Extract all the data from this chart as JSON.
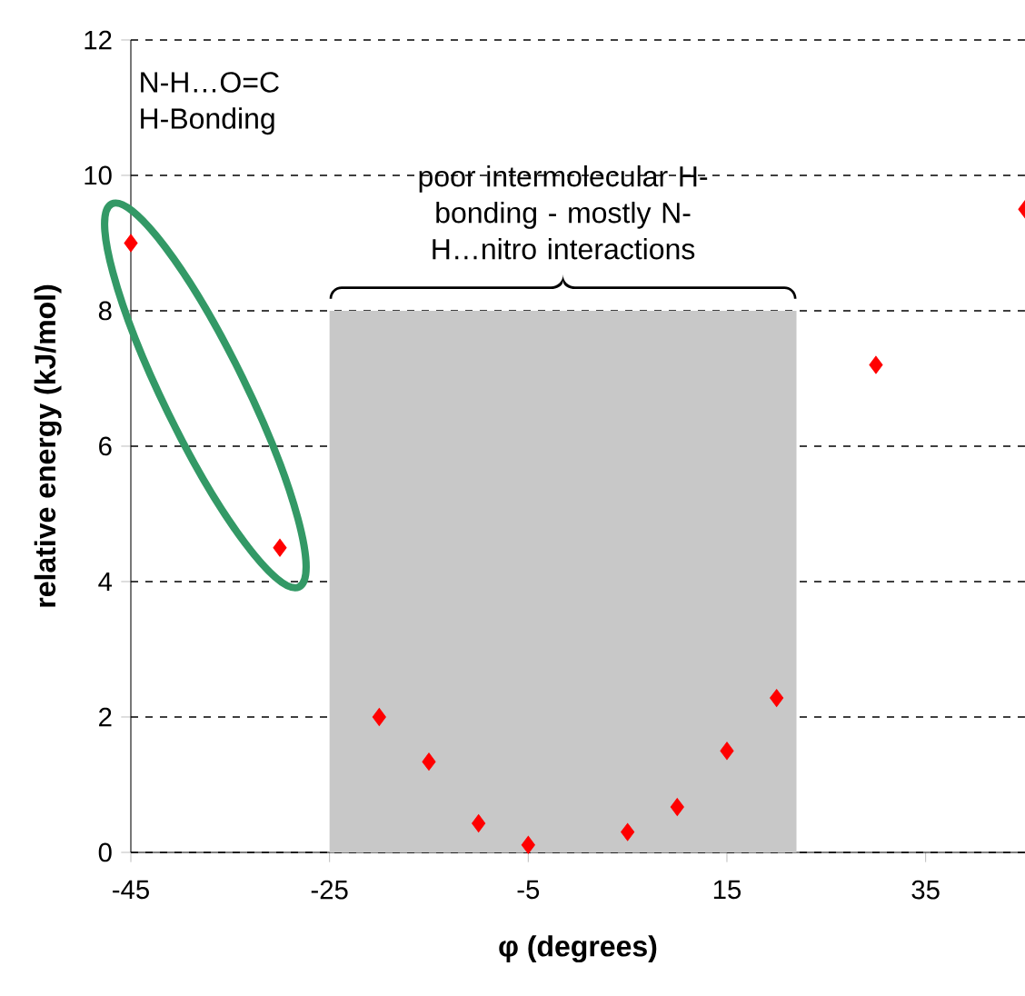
{
  "chart_data": {
    "type": "scatter",
    "xlabel": "φ (degrees)",
    "ylabel": "relative energy (kJ/mol)",
    "x": [
      -45,
      -30,
      -20,
      -15,
      -10,
      -5,
      5,
      10,
      15,
      20,
      30,
      45
    ],
    "values": [
      9.0,
      4.5,
      2.0,
      1.34,
      0.43,
      0.11,
      0.3,
      0.67,
      1.5,
      2.28,
      7.2,
      9.5
    ],
    "color": "#ff0000",
    "marker": "diamond",
    "xlim": [
      -45,
      45
    ],
    "ylim": [
      0,
      12
    ],
    "xticks": [
      -45,
      -25,
      -5,
      15,
      35
    ],
    "yticks": [
      0,
      2,
      4,
      6,
      8,
      10,
      12
    ],
    "grid": "y",
    "bands": [
      {
        "axis": "x",
        "from": -25,
        "to": 22,
        "color": "#c8c8c8"
      }
    ],
    "annotations": [
      "N-H…O=C H-Bonding",
      {
        "text": "poor intermolecular H-bonding - mostly N-H…nitro interactions",
        "x": -1.5,
        "y": 8
      }
    ]
  }
}
